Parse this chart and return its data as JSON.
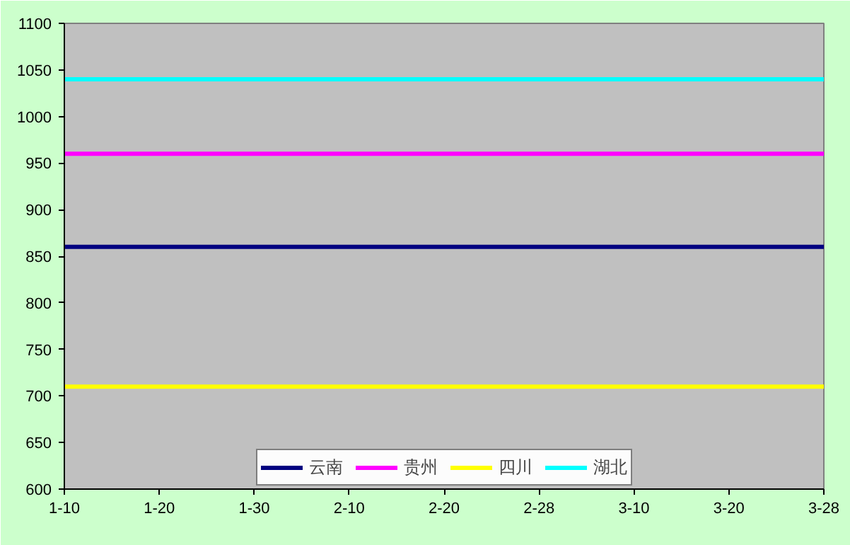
{
  "chart_data": {
    "type": "line",
    "categories": [
      "1-10",
      "1-20",
      "1-30",
      "2-10",
      "2-20",
      "2-28",
      "3-10",
      "3-20",
      "3-28"
    ],
    "series": [
      {
        "name": "云南",
        "color": "#000080",
        "values": [
          860,
          860,
          860,
          860,
          860,
          860,
          860,
          860,
          860
        ]
      },
      {
        "name": "贵州",
        "color": "#ff00ff",
        "values": [
          960,
          960,
          960,
          960,
          960,
          960,
          960,
          960,
          960
        ]
      },
      {
        "name": "四川",
        "color": "#ffff00",
        "values": [
          710,
          710,
          710,
          710,
          710,
          710,
          710,
          710,
          710
        ]
      },
      {
        "name": "湖北",
        "color": "#00ffff",
        "values": [
          1040,
          1040,
          1040,
          1040,
          1040,
          1040,
          1040,
          1040,
          1040
        ]
      }
    ],
    "ylim": [
      600,
      1100
    ],
    "yticks": [
      600,
      650,
      700,
      750,
      800,
      850,
      900,
      950,
      1000,
      1050,
      1100
    ],
    "grid": false,
    "legend": "bottom",
    "line_style": "solid",
    "marker": "none"
  }
}
